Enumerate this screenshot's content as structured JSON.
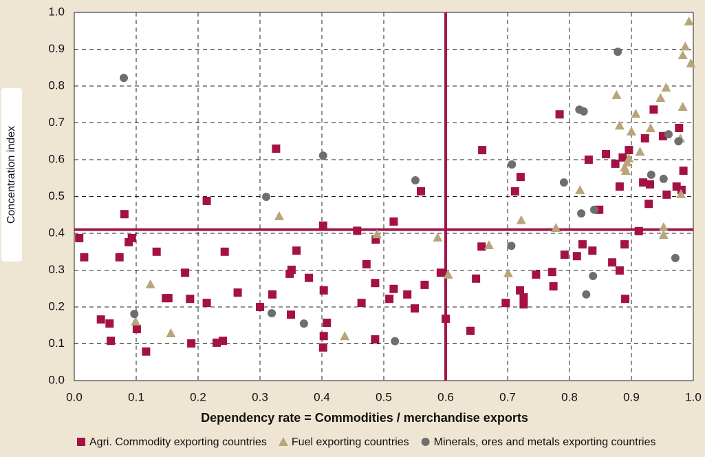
{
  "chart_data": {
    "type": "scatter",
    "xlabel": "Dependency rate = Commodities / merchandise exports",
    "ylabel": "Concentration index",
    "xlim": [
      0,
      1
    ],
    "ylim": [
      0,
      1
    ],
    "xticks": [
      {
        "value": 0,
        "label": "0.0"
      },
      0.1,
      0.2,
      0.3,
      0.4,
      0.5,
      0.6,
      0.7,
      0.8,
      0.9,
      {
        "value": 1,
        "label": "1.0"
      }
    ],
    "yticks": [
      {
        "value": 0,
        "label": "0.0"
      },
      0.1,
      0.2,
      0.3,
      0.4,
      0.5,
      0.6,
      0.7,
      0.8,
      0.9,
      {
        "value": 1,
        "label": "1.0"
      }
    ],
    "grid": true,
    "reference_lines": {
      "x": 0.6,
      "y": 0.41,
      "color": "#a0174a"
    },
    "legend": "bottom",
    "series": [
      {
        "name": "Agri. Commodity exporting countries",
        "color": "#a31242",
        "marker": "square",
        "x": [
          0.008,
          0.016,
          0.043,
          0.057,
          0.059,
          0.073,
          0.081,
          0.088,
          0.093,
          0.101,
          0.116,
          0.133,
          0.148,
          0.152,
          0.179,
          0.187,
          0.189,
          0.214,
          0.214,
          0.23,
          0.24,
          0.243,
          0.264,
          0.3,
          0.32,
          0.326,
          0.348,
          0.351,
          0.35,
          0.359,
          0.379,
          0.403,
          0.408,
          0.402,
          0.402,
          0.403,
          0.457,
          0.464,
          0.472,
          0.486,
          0.487,
          0.486,
          0.516,
          0.509,
          0.516,
          0.538,
          0.55,
          0.56,
          0.566,
          0.592,
          0.6,
          0.649,
          0.658,
          0.64,
          0.659,
          0.697,
          0.712,
          0.721,
          0.72,
          0.726,
          0.726,
          0.746,
          0.772,
          0.774,
          0.784,
          0.792,
          0.812,
          0.821,
          0.831,
          0.837,
          0.848,
          0.859,
          0.869,
          0.874,
          0.881,
          0.881,
          0.886,
          0.889,
          0.89,
          0.896,
          0.912,
          0.919,
          0.922,
          0.928,
          0.93,
          0.936,
          0.951,
          0.957,
          0.973,
          0.977,
          0.981,
          0.984
        ],
        "values": [
          0.387,
          0.335,
          0.166,
          0.155,
          0.108,
          0.335,
          0.452,
          0.376,
          0.387,
          0.14,
          0.079,
          0.35,
          0.224,
          0.224,
          0.293,
          0.222,
          0.101,
          0.488,
          0.211,
          0.103,
          0.108,
          0.35,
          0.239,
          0.2,
          0.234,
          0.63,
          0.29,
          0.301,
          0.179,
          0.353,
          0.279,
          0.121,
          0.157,
          0.421,
          0.09,
          0.245,
          0.407,
          0.211,
          0.316,
          0.265,
          0.383,
          0.112,
          0.432,
          0.222,
          0.249,
          0.234,
          0.196,
          0.514,
          0.26,
          0.293,
          0.168,
          0.277,
          0.364,
          0.135,
          0.626,
          0.211,
          0.514,
          0.553,
          0.245,
          0.226,
          0.207,
          0.288,
          0.295,
          0.256,
          0.723,
          0.342,
          0.338,
          0.37,
          0.6,
          0.353,
          0.464,
          0.615,
          0.321,
          0.589,
          0.527,
          0.299,
          0.606,
          0.37,
          0.222,
          0.626,
          0.406,
          0.538,
          0.658,
          0.48,
          0.533,
          0.736,
          0.664,
          0.505,
          0.527,
          0.686,
          0.518,
          0.57
        ]
      },
      {
        "name": "Fuel exporting countries",
        "color": "#b8a57a",
        "marker": "triangle",
        "x": [
          0.099,
          0.123,
          0.156,
          0.331,
          0.437,
          0.489,
          0.587,
          0.604,
          0.67,
          0.701,
          0.722,
          0.778,
          0.817,
          0.876,
          0.881,
          0.889,
          0.891,
          0.893,
          0.896,
          0.9,
          0.907,
          0.914,
          0.931,
          0.947,
          0.956,
          0.952,
          0.952,
          0.979,
          0.98,
          0.983,
          0.983,
          0.987,
          0.993,
          0.996
        ],
        "values": [
          0.161,
          0.262,
          0.129,
          0.447,
          0.121,
          0.398,
          0.389,
          0.288,
          0.368,
          0.292,
          0.436,
          0.415,
          0.518,
          0.776,
          0.693,
          0.579,
          0.57,
          0.593,
          0.604,
          0.677,
          0.725,
          0.622,
          0.686,
          0.768,
          0.796,
          0.417,
          0.396,
          0.658,
          0.507,
          0.744,
          0.884,
          0.908,
          0.976,
          0.862
        ]
      },
      {
        "name": "Minerals, ores and metals exporting countries",
        "color": "#6d6e70",
        "marker": "circle",
        "x": [
          0.08,
          0.097,
          0.31,
          0.319,
          0.371,
          0.402,
          0.518,
          0.551,
          0.707,
          0.706,
          0.791,
          0.816,
          0.823,
          0.819,
          0.827,
          0.838,
          0.84,
          0.878,
          0.932,
          0.952,
          0.96,
          0.971,
          0.976
        ],
        "values": [
          0.822,
          0.181,
          0.499,
          0.183,
          0.155,
          0.611,
          0.107,
          0.544,
          0.587,
          0.366,
          0.538,
          0.736,
          0.731,
          0.454,
          0.234,
          0.284,
          0.464,
          0.893,
          0.559,
          0.548,
          0.669,
          0.333,
          0.65
        ]
      }
    ]
  }
}
